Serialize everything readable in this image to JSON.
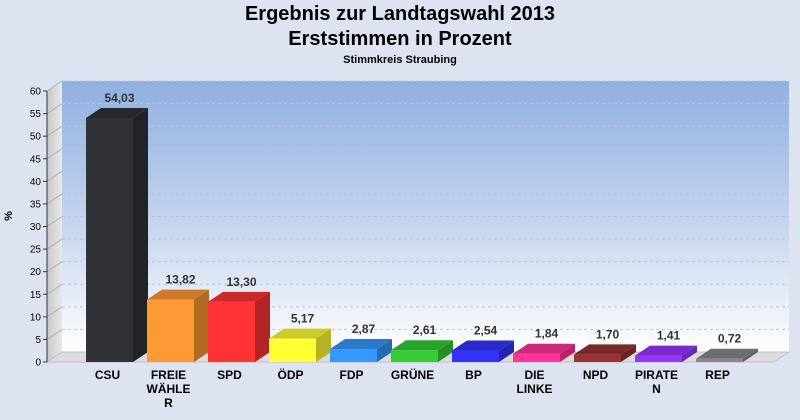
{
  "chart_data": {
    "type": "bar",
    "title": "Ergebnis zur Landtagswahl 2013",
    "subtitle": "Erststimmen in Prozent",
    "caption": "Stimmkreis Straubing",
    "ylabel": "%",
    "ylim": [
      0,
      60
    ],
    "yticks": [
      0,
      5,
      10,
      15,
      20,
      25,
      30,
      35,
      40,
      45,
      50,
      55,
      60
    ],
    "grid": true,
    "categories": [
      "CSU",
      "FREIE WÄHLE R",
      "SPD",
      "ÖDP",
      "FDP",
      "GRÜNE",
      "BP",
      "DIE LINKE",
      "NPD",
      "PIRATE N",
      "REP"
    ],
    "category_lines": [
      [
        "CSU"
      ],
      [
        "FREIE",
        "WÄHLE",
        "R"
      ],
      [
        "SPD"
      ],
      [
        "ÖDP"
      ],
      [
        "FDP"
      ],
      [
        "GRÜNE"
      ],
      [
        "BP"
      ],
      [
        "DIE",
        "LINKE"
      ],
      [
        "NPD"
      ],
      [
        "PIRATE",
        "N"
      ],
      [
        "REP"
      ]
    ],
    "values": [
      54.03,
      13.82,
      13.3,
      5.17,
      2.87,
      2.61,
      2.54,
      1.84,
      1.7,
      1.41,
      0.72
    ],
    "value_labels": [
      "54,03",
      "13,82",
      "13,30",
      "5,17",
      "2,87",
      "2,61",
      "2,54",
      "1,84",
      "1,70",
      "1,41",
      "0,72"
    ],
    "colors": [
      "#303238",
      "#ff9933",
      "#ff3333",
      "#ffff33",
      "#3399ff",
      "#33cc33",
      "#3333ff",
      "#ff3399",
      "#993333",
      "#9933ff",
      "#888888"
    ]
  }
}
